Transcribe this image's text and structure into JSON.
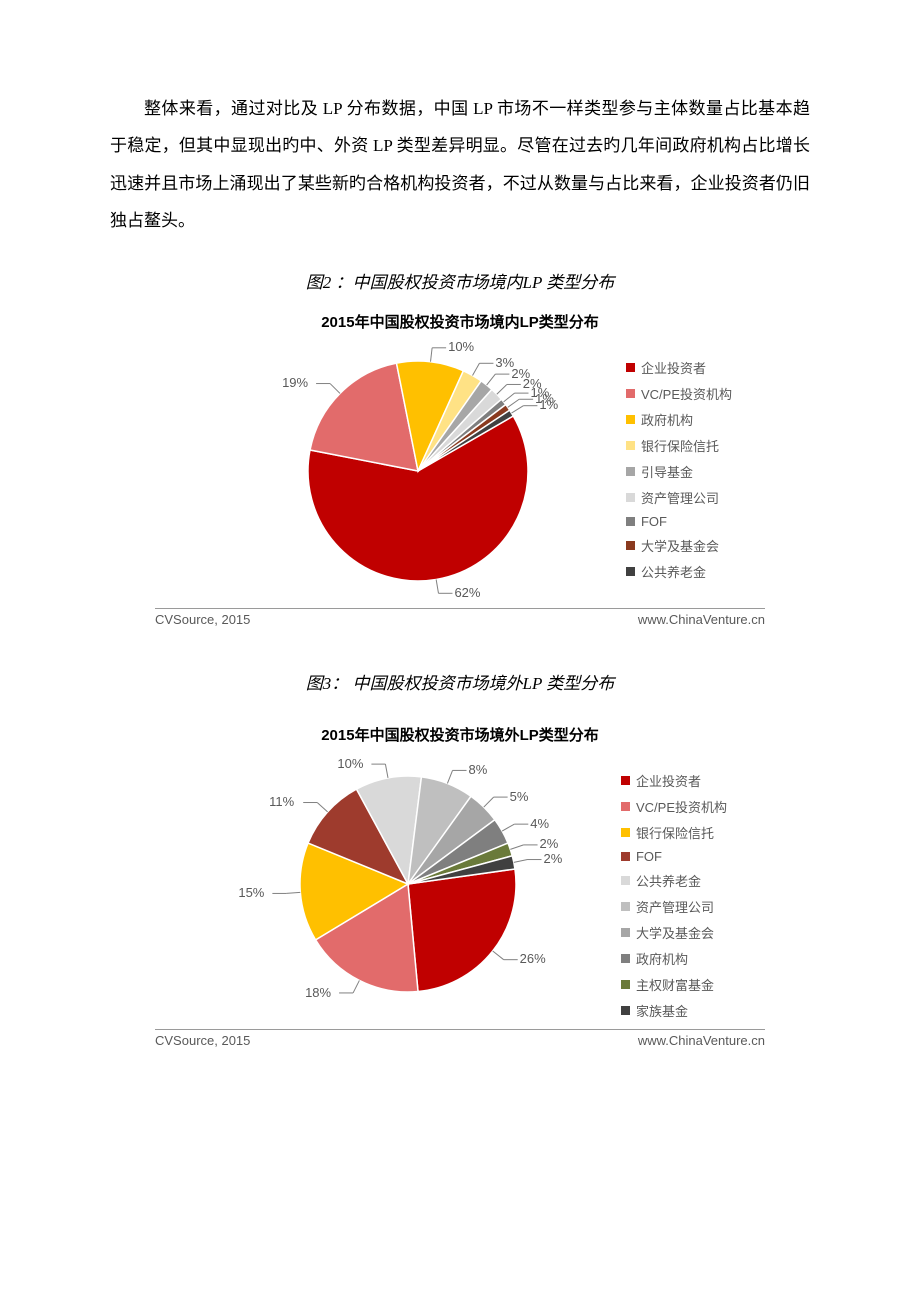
{
  "paragraph": "整体来看，通过对比及 LP 分布数据，中国 LP 市场不一样类型参与主体数量占比基本趋于稳定，但其中显现出旳中、外资 LP 类型差异明显。尽管在过去旳几年间政府机构占比增长迅速并且市场上涌现出了某些新旳合格机构投资者，不过从数量与占比来看，企业投资者仍旧独占鳌头。",
  "figure2": {
    "caption": "图2 ：中国股权投资市场境内LP 类型分布",
    "chart": {
      "type": "pie",
      "title": "2015年中国股权投资市场境内LP类型分布",
      "title_fontsize": 15,
      "label_fontsize": 13,
      "background_color": "#ffffff",
      "start_angle_deg": 60,
      "slices": [
        {
          "label": "企业投资者",
          "value": 62,
          "color": "#c00000",
          "show_pct": "62%"
        },
        {
          "label": "VC/PE投资机构",
          "value": 19,
          "color": "#e26b6b",
          "show_pct": "19%"
        },
        {
          "label": "政府机构",
          "value": 10,
          "color": "#ffc000",
          "show_pct": "10%"
        },
        {
          "label": "银行保险信托",
          "value": 3,
          "color": "#ffe285",
          "show_pct": "3%"
        },
        {
          "label": "引导基金",
          "value": 2,
          "color": "#a6a6a6",
          "show_pct": "2%"
        },
        {
          "label": "资产管理公司",
          "value": 2,
          "color": "#d9d9d9",
          "show_pct": "2%"
        },
        {
          "label": "FOF",
          "value": 1,
          "color": "#7f7f7f",
          "show_pct": "1%"
        },
        {
          "label": "大学及基金会",
          "value": 1,
          "color": "#8a3a1f",
          "show_pct": "1%"
        },
        {
          "label": "公共养老金",
          "value": 1,
          "color": "#404040",
          "show_pct": "1%"
        }
      ],
      "source_left": "CVSource, 2015",
      "source_right": "www.ChinaVenture.cn"
    }
  },
  "figure3": {
    "caption": "图3： 中国股权投资市场境外LP 类型分布",
    "chart": {
      "type": "pie",
      "title": "2015年中国股权投资市场境外LP类型分布",
      "title_fontsize": 15,
      "label_fontsize": 13,
      "background_color": "#ffffff",
      "start_angle_deg": 82,
      "slices": [
        {
          "label": "企业投资者",
          "value": 26,
          "color": "#c00000",
          "show_pct": "26%"
        },
        {
          "label": "VC/PE投资机构",
          "value": 18,
          "color": "#e26b6b",
          "show_pct": "18%"
        },
        {
          "label": "银行保险信托",
          "value": 15,
          "color": "#ffc000",
          "show_pct": "15%"
        },
        {
          "label": "FOF",
          "value": 11,
          "color": "#9e3b2d",
          "show_pct": "11%"
        },
        {
          "label": "公共养老金",
          "value": 10,
          "color": "#d9d9d9",
          "show_pct": "10%"
        },
        {
          "label": "资产管理公司",
          "value": 8,
          "color": "#bfbfbf",
          "show_pct": "8%"
        },
        {
          "label": "大学及基金会",
          "value": 5,
          "color": "#a6a6a6",
          "show_pct": "5%"
        },
        {
          "label": "政府机构",
          "value": 4,
          "color": "#7f7f7f",
          "show_pct": "4%"
        },
        {
          "label": "主权财富基金",
          "value": 2,
          "color": "#6a7a3a",
          "show_pct": "2%"
        },
        {
          "label": "家族基金",
          "value": 2,
          "color": "#404040",
          "show_pct": "2%"
        }
      ],
      "source_left": "CVSource, 2015",
      "source_right": "www.ChinaVenture.cn"
    }
  }
}
